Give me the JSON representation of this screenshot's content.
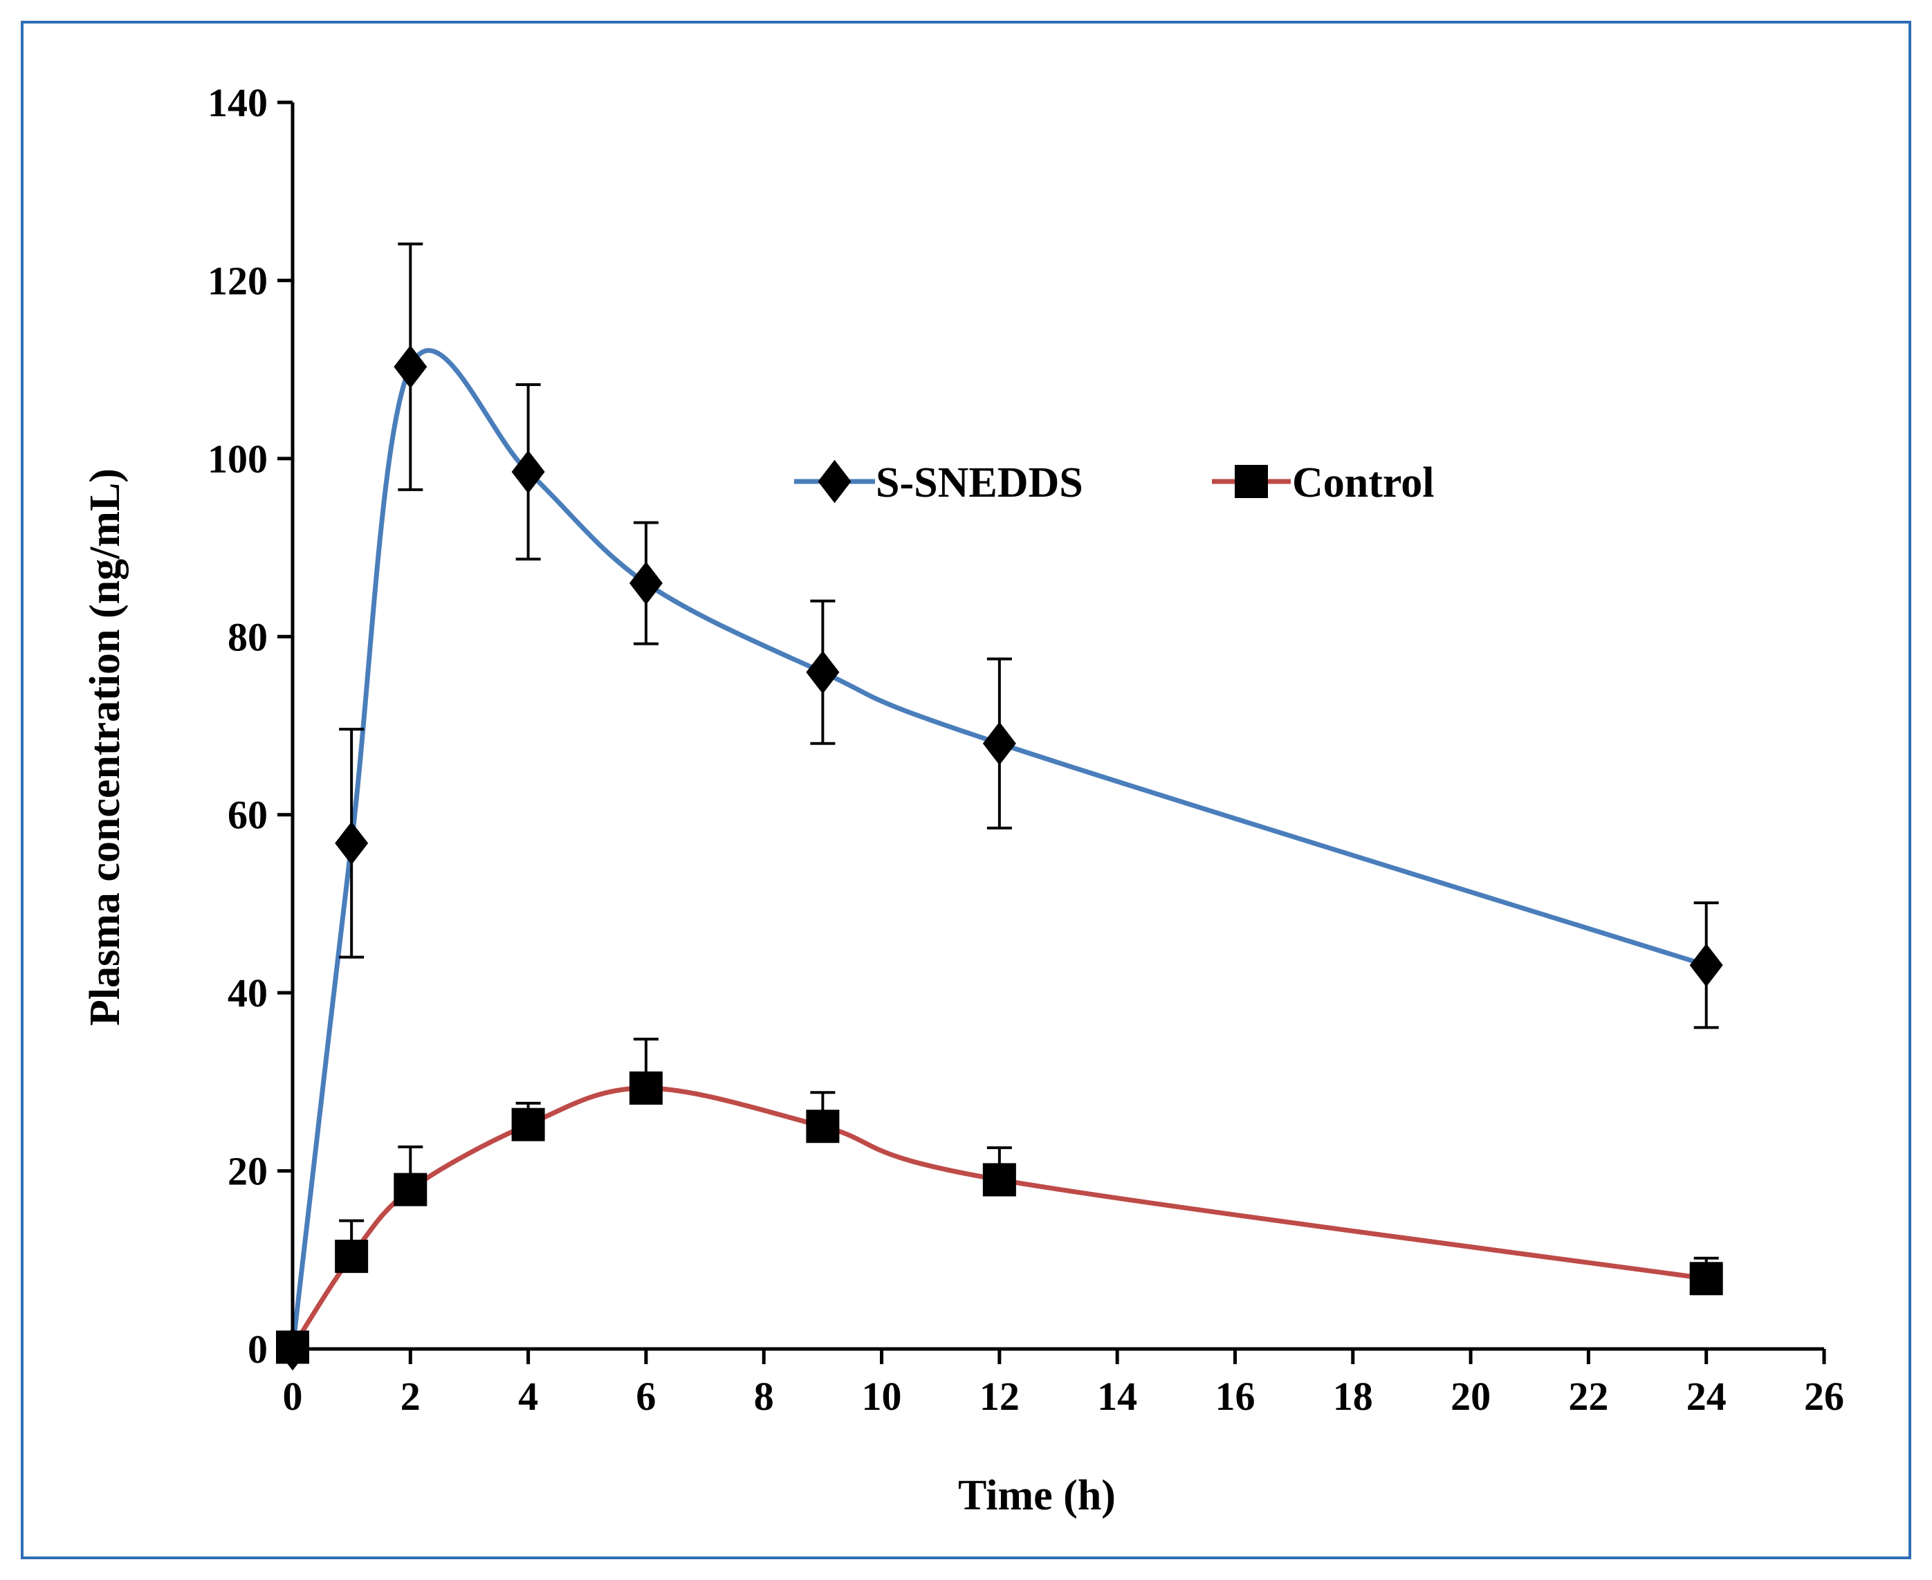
{
  "chart_data": {
    "type": "line",
    "title": "",
    "xlabel": "Time (h)",
    "ylabel": "Plasma concentration (ng/mL)",
    "xlim": [
      0,
      26
    ],
    "ylim": [
      0,
      140
    ],
    "xticks": [
      0,
      2,
      4,
      6,
      8,
      10,
      12,
      14,
      16,
      18,
      20,
      22,
      24,
      26
    ],
    "yticks": [
      0,
      20,
      40,
      60,
      80,
      100,
      120,
      140
    ],
    "x": [
      0,
      1,
      2,
      4,
      6,
      9,
      12,
      24
    ],
    "legend_position": "upper-center",
    "series": [
      {
        "name": "S-SNEDDS",
        "marker": "diamond",
        "color": "#4a7ebb",
        "values": [
          0,
          56.8,
          110.3,
          98.5,
          86,
          76,
          68,
          43.1
        ],
        "errors": [
          0,
          12.8,
          13.8,
          9.8,
          6.8,
          8,
          9.5,
          7
        ]
      },
      {
        "name": "Control",
        "marker": "square",
        "color": "#be4b48",
        "values": [
          0.2,
          10.4,
          17.9,
          25.2,
          29.3,
          25,
          19,
          7.9
        ],
        "errors": [
          0,
          4,
          4.8,
          2.4,
          5.5,
          3.8,
          3.6,
          2.3
        ]
      }
    ]
  }
}
